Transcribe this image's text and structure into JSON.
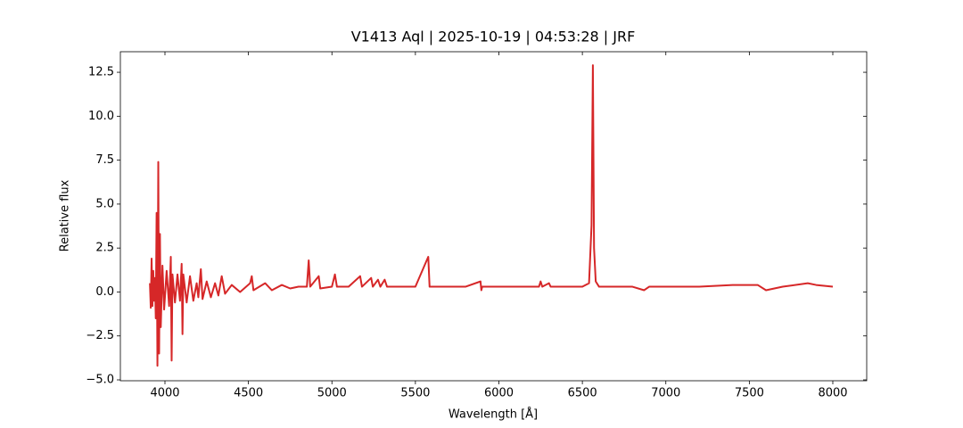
{
  "chart_data": {
    "type": "line",
    "title": "V1413 Aql | 2025-10-19 | 04:53:28 | JRF",
    "x_label": "Wavelength [Å]",
    "y_label": "Relative flux",
    "color": "#d62728",
    "xlim": [
      3733,
      8203
    ],
    "ylim": [
      -5.05,
      13.67
    ],
    "xticks": [
      4000,
      4500,
      5000,
      5500,
      6000,
      6500,
      7000,
      7500,
      8000
    ],
    "yticks": [
      {
        "value": -5,
        "label": "−5.0"
      },
      {
        "value": -2.5,
        "label": "−2.5"
      },
      {
        "value": 0,
        "label": "0.0"
      },
      2.5,
      {
        "value": 5,
        "label": "5.0"
      },
      7.5,
      {
        "value": 10,
        "label": "10.0"
      },
      12.5
    ],
    "x": [
      3910,
      3915,
      3920,
      3925,
      3930,
      3935,
      3940,
      3945,
      3950,
      3955,
      3960,
      3965,
      3970,
      3975,
      3985,
      3995,
      4010,
      4025,
      4035,
      4040,
      4045,
      4060,
      4075,
      4090,
      4100,
      4105,
      4110,
      4130,
      4150,
      4170,
      4190,
      4200,
      4215,
      4225,
      4250,
      4275,
      4300,
      4320,
      4340,
      4360,
      4400,
      4450,
      4510,
      4520,
      4530,
      4600,
      4640,
      4700,
      4750,
      4800,
      4850,
      4861,
      4870,
      4921,
      4930,
      5000,
      5018,
      5030,
      5100,
      5169,
      5180,
      5235,
      5245,
      5276,
      5290,
      5316,
      5330,
      5400,
      5500,
      5577,
      5585,
      5700,
      5800,
      5890,
      5895,
      5900,
      6000,
      6100,
      6240,
      6250,
      6260,
      6300,
      6310,
      6400,
      6450,
      6500,
      6540,
      6555,
      6563,
      6570,
      6580,
      6600,
      6700,
      6800,
      6870,
      6900,
      7000,
      7200,
      7400,
      7550,
      7600,
      7650,
      7700,
      7850,
      7900,
      8000
    ],
    "values": [
      0.5,
      -0.9,
      1.9,
      -0.8,
      1.2,
      -0.5,
      0.8,
      -1.5,
      4.5,
      -4.2,
      7.4,
      -3.5,
      3.3,
      -2.0,
      1.5,
      -1.0,
      1.2,
      -0.8,
      2.0,
      -3.9,
      1.0,
      -0.6,
      1.0,
      -0.5,
      1.6,
      -2.4,
      1.0,
      -0.6,
      0.9,
      -0.5,
      0.5,
      -0.3,
      1.3,
      -0.4,
      0.6,
      -0.3,
      0.5,
      -0.2,
      0.9,
      -0.1,
      0.4,
      0.0,
      0.5,
      0.9,
      0.1,
      0.5,
      0.1,
      0.4,
      0.2,
      0.3,
      0.3,
      1.8,
      0.3,
      0.9,
      0.2,
      0.3,
      1.0,
      0.3,
      0.3,
      0.9,
      0.3,
      0.8,
      0.3,
      0.7,
      0.3,
      0.7,
      0.3,
      0.3,
      0.3,
      2.0,
      0.3,
      0.3,
      0.3,
      0.6,
      0.1,
      0.3,
      0.3,
      0.3,
      0.3,
      0.6,
      0.3,
      0.5,
      0.3,
      0.3,
      0.3,
      0.3,
      0.5,
      3.8,
      12.9,
      2.5,
      0.6,
      0.3,
      0.3,
      0.3,
      0.1,
      0.3,
      0.3,
      0.3,
      0.4,
      0.4,
      0.1,
      0.2,
      0.3,
      0.5,
      0.4,
      0.3
    ]
  }
}
